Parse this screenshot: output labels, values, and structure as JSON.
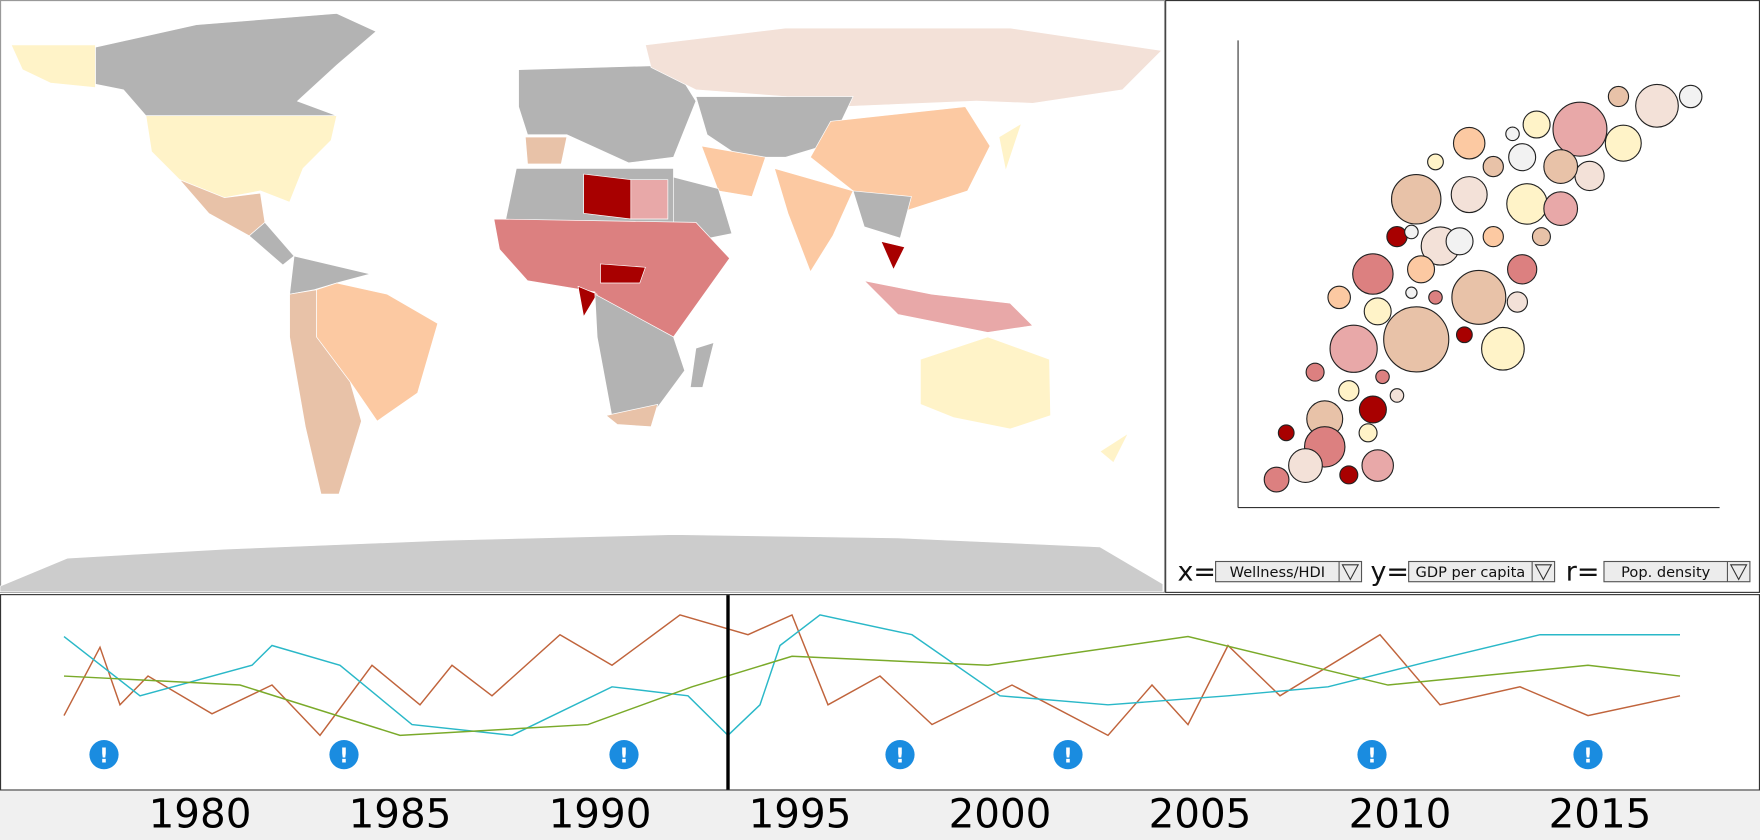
{
  "scatter": {
    "xlim": [
      0,
      100
    ],
    "ylim": [
      0,
      100
    ],
    "points": [
      {
        "x": 94,
        "y": 88,
        "r": 10,
        "color": "#f2f2f2"
      },
      {
        "x": 87,
        "y": 86,
        "r": 19,
        "color": "#f3e1d8"
      },
      {
        "x": 79,
        "y": 88,
        "r": 9,
        "color": "#e8c2a8"
      },
      {
        "x": 71,
        "y": 81,
        "r": 24,
        "color": "#e8a8a8"
      },
      {
        "x": 62,
        "y": 82,
        "r": 12,
        "color": "#fff3c8"
      },
      {
        "x": 57,
        "y": 80,
        "r": 6,
        "color": "#f2f2f2"
      },
      {
        "x": 80,
        "y": 78,
        "r": 16,
        "color": "#fff3c8"
      },
      {
        "x": 73,
        "y": 71,
        "r": 13,
        "color": "#f3e1d8"
      },
      {
        "x": 67,
        "y": 73,
        "r": 15,
        "color": "#e8c2a8"
      },
      {
        "x": 48,
        "y": 78,
        "r": 14,
        "color": "#fcc9a2"
      },
      {
        "x": 59,
        "y": 75,
        "r": 12,
        "color": "#f2f2f2"
      },
      {
        "x": 53,
        "y": 73,
        "r": 9,
        "color": "#e8c2a8"
      },
      {
        "x": 41,
        "y": 74,
        "r": 7,
        "color": "#fff3c8"
      },
      {
        "x": 37,
        "y": 66,
        "r": 22,
        "color": "#e8c2a8"
      },
      {
        "x": 48,
        "y": 67,
        "r": 16,
        "color": "#f3e1d8"
      },
      {
        "x": 60,
        "y": 65,
        "r": 18,
        "color": "#fff3c8"
      },
      {
        "x": 67,
        "y": 64,
        "r": 15,
        "color": "#e8a8a8"
      },
      {
        "x": 33,
        "y": 58,
        "r": 9,
        "color": "#a80000"
      },
      {
        "x": 36,
        "y": 59,
        "r": 6,
        "color": "#f2f2f2"
      },
      {
        "x": 42,
        "y": 56,
        "r": 17,
        "color": "#f3e1d8"
      },
      {
        "x": 46,
        "y": 57,
        "r": 12,
        "color": "#f2f2f2"
      },
      {
        "x": 53,
        "y": 58,
        "r": 9,
        "color": "#fcc9a2"
      },
      {
        "x": 63,
        "y": 58,
        "r": 8,
        "color": "#e8c2a8"
      },
      {
        "x": 28,
        "y": 50,
        "r": 18,
        "color": "#dc8080"
      },
      {
        "x": 38,
        "y": 51,
        "r": 12,
        "color": "#fcc9a2"
      },
      {
        "x": 59,
        "y": 51,
        "r": 13,
        "color": "#dc8080"
      },
      {
        "x": 21,
        "y": 45,
        "r": 10,
        "color": "#fcc9a2"
      },
      {
        "x": 29,
        "y": 42,
        "r": 12,
        "color": "#fff3c8"
      },
      {
        "x": 36,
        "y": 46,
        "r": 5,
        "color": "#f2f2f2"
      },
      {
        "x": 41,
        "y": 45,
        "r": 6,
        "color": "#dc8080"
      },
      {
        "x": 50,
        "y": 45,
        "r": 24,
        "color": "#e8c2a8"
      },
      {
        "x": 58,
        "y": 44,
        "r": 9,
        "color": "#f3e1d8"
      },
      {
        "x": 24,
        "y": 34,
        "r": 21,
        "color": "#e8a8a8"
      },
      {
        "x": 37,
        "y": 36,
        "r": 29,
        "color": "#e8c2a8"
      },
      {
        "x": 47,
        "y": 37,
        "r": 7,
        "color": "#a80000"
      },
      {
        "x": 55,
        "y": 34,
        "r": 19,
        "color": "#fff3c8"
      },
      {
        "x": 16,
        "y": 29,
        "r": 8,
        "color": "#dc8080"
      },
      {
        "x": 30,
        "y": 28,
        "r": 6,
        "color": "#dc8080"
      },
      {
        "x": 23,
        "y": 25,
        "r": 9,
        "color": "#fff3c8"
      },
      {
        "x": 33,
        "y": 24,
        "r": 6,
        "color": "#f3e1d8"
      },
      {
        "x": 28,
        "y": 21,
        "r": 12,
        "color": "#a80000"
      },
      {
        "x": 18,
        "y": 19,
        "r": 16,
        "color": "#e8c2a8"
      },
      {
        "x": 10,
        "y": 16,
        "r": 7,
        "color": "#a80000"
      },
      {
        "x": 27,
        "y": 16,
        "r": 8,
        "color": "#fff3c8"
      },
      {
        "x": 18,
        "y": 13,
        "r": 18,
        "color": "#dc8080"
      },
      {
        "x": 14,
        "y": 9,
        "r": 15,
        "color": "#f3e1d8"
      },
      {
        "x": 8,
        "y": 6,
        "r": 11,
        "color": "#dc8080"
      },
      {
        "x": 23,
        "y": 7,
        "r": 8,
        "color": "#a80000"
      },
      {
        "x": 29,
        "y": 9,
        "r": 14,
        "color": "#e8a8a8"
      }
    ]
  },
  "controls": [
    {
      "label": "x=",
      "value": "Wellness/HDI"
    },
    {
      "label": "y=",
      "value": "GDP per capita"
    },
    {
      "label": "r=",
      "value": "Pop. density"
    }
  ],
  "timeline": {
    "xlim": [
      1975,
      2019
    ],
    "ylim": [
      0,
      100
    ],
    "xticks": [
      1980,
      1985,
      1990,
      1995,
      2000,
      2005,
      2010,
      2015
    ],
    "cursor": 1993.2,
    "alert_symbol": "!",
    "alerts": [
      1977.6,
      1983.6,
      1990.6,
      1997.5,
      2001.7,
      2009.3,
      2014.7
    ],
    "series": [
      {
        "color": "#c0643c",
        "x": [
          1976.6,
          1977.5,
          1978.0,
          1978.7,
          1980.3,
          1981.8,
          1983.0,
          1984.3,
          1985.5,
          1986.3,
          1987.3,
          1989.0,
          1990.3,
          1992.0,
          1993.7,
          1994.8,
          1995.7,
          1997.0,
          1998.3,
          2000.3,
          2002.7,
          2003.8,
          2004.7,
          2005.7,
          2007.0,
          2009.5,
          2011.0,
          2013.0,
          2014.7,
          2017.0
        ],
        "values": [
          33,
          71,
          39,
          55,
          34,
          50,
          22,
          61,
          39,
          61,
          44,
          78,
          61,
          89,
          78,
          89,
          39,
          55,
          28,
          50,
          22,
          50,
          28,
          72,
          44,
          78,
          39,
          49,
          33,
          44
        ]
      },
      {
        "color": "#2ab8c8",
        "x": [
          1976.6,
          1978.5,
          1981.3,
          1981.8,
          1983.5,
          1985.3,
          1987.8,
          1990.3,
          1992.2,
          1993.2,
          1994.0,
          1994.5,
          1995.5,
          1997.8,
          2000.0,
          2002.7,
          2005.7,
          2008.2,
          2010.7,
          2013.5,
          2017.0
        ],
        "values": [
          77,
          44,
          61,
          72,
          61,
          28,
          22,
          49,
          44,
          22,
          39,
          72,
          89,
          78,
          44,
          39,
          44,
          49,
          63,
          78,
          78
        ]
      },
      {
        "color": "#7aaa2a",
        "x": [
          1976.6,
          1981.0,
          1985.0,
          1989.7,
          1992.3,
          1994.8,
          1999.7,
          2004.7,
          2009.7,
          2014.7,
          2017.0
        ],
        "values": [
          55,
          50,
          22,
          28,
          49,
          66,
          61,
          77,
          50,
          61,
          55
        ]
      }
    ]
  }
}
